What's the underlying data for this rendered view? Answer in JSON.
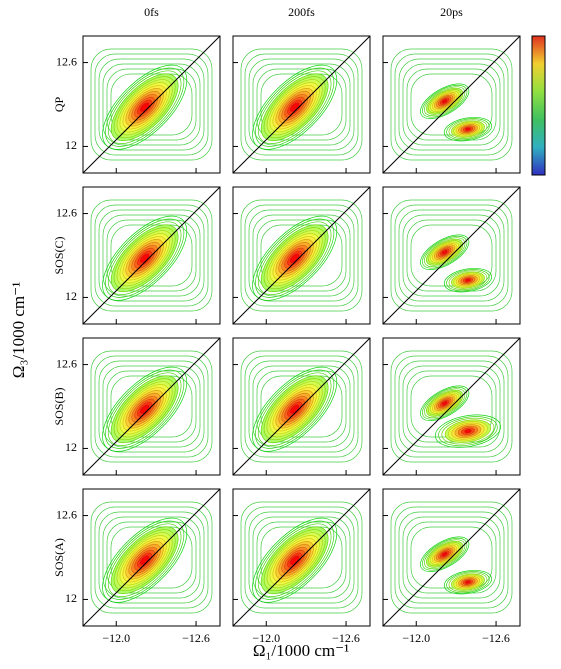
{
  "chart_data": {
    "type": "contour",
    "columns": [
      "0fs",
      "200fs",
      "20ps"
    ],
    "rows": [
      "QP",
      "SOS(C)",
      "SOS(B)",
      "SOS(A)"
    ],
    "xlabel": "Ω₁/1000 cm⁻¹",
    "ylabel": "Ω₃/1000 cm⁻¹",
    "xlim": [
      -11.75,
      -12.78
    ],
    "ylim": [
      11.81,
      12.79
    ],
    "xticks": [
      {
        "value": -12.0,
        "label": "−12.0"
      },
      {
        "value": -12.6,
        "label": "−12.6"
      }
    ],
    "yticks": [
      12.0,
      12.6
    ]
  }
}
